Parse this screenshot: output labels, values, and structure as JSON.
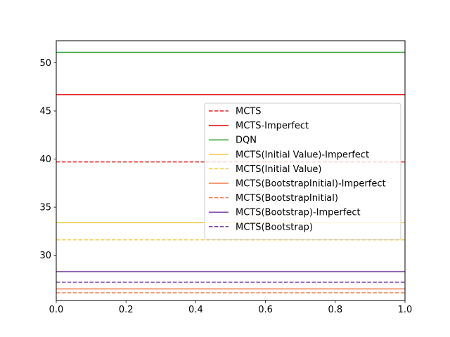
{
  "chart_data": {
    "type": "line",
    "title": "",
    "xlabel": "",
    "ylabel": "",
    "xlim": [
      0.0,
      1.0
    ],
    "ylim": [
      25.3,
      52.3
    ],
    "xticks": [
      0.0,
      0.2,
      0.4,
      0.6,
      0.8,
      1.0
    ],
    "xtick_labels": [
      "0.0",
      "0.2",
      "0.4",
      "0.6",
      "0.8",
      "1.0"
    ],
    "yticks": [
      30,
      35,
      40,
      45,
      50
    ],
    "ytick_labels": [
      "30",
      "35",
      "40",
      "45",
      "50"
    ],
    "grid": false,
    "legend_placement": "center-right",
    "series": [
      {
        "name": "MCTS",
        "value": 39.7,
        "color": "#e52222",
        "style": "dashed"
      },
      {
        "name": "MCTS-Imperfect",
        "value": 46.7,
        "color": "#e52222",
        "style": "solid"
      },
      {
        "name": "DQN",
        "value": 51.1,
        "color": "#2ca02c",
        "style": "solid"
      },
      {
        "name": "MCTS(Initial Value)-Imperfect",
        "value": 33.4,
        "color": "#f2c83b",
        "style": "solid"
      },
      {
        "name": "MCTS(Initial Value)",
        "value": 31.6,
        "color": "#f2c83b",
        "style": "dashed"
      },
      {
        "name": "MCTS(BootstrapInitial)-Imperfect",
        "value": 26.5,
        "color": "#f07c4c",
        "style": "solid"
      },
      {
        "name": "MCTS(BootstrapInitial)",
        "value": 26.1,
        "color": "#f07c4c",
        "style": "dashed"
      },
      {
        "name": "MCTS(Bootstrap)-Imperfect",
        "value": 28.3,
        "color": "#8040a8",
        "style": "solid"
      },
      {
        "name": "MCTS(Bootstrap)",
        "value": 27.2,
        "color": "#8040a8",
        "style": "dashed"
      }
    ]
  }
}
